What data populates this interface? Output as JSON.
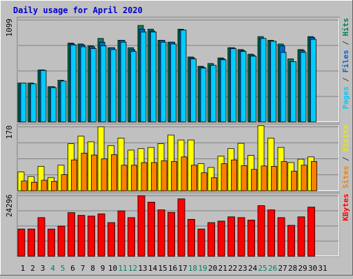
{
  "chart_data": [
    {
      "type": "bar",
      "title": "Daily usage for April 2020",
      "ymax_label": "1099",
      "axis_labels": [
        {
          "text": "Pages",
          "color": "#00ccff"
        },
        {
          "text": " / ",
          "color": "#404040"
        },
        {
          "text": "Files",
          "color": "#0066cc"
        },
        {
          "text": " / ",
          "color": "#404040"
        },
        {
          "text": "Hits",
          "color": "#008060"
        }
      ],
      "ylim": [
        0,
        1099
      ],
      "grid": true,
      "series": [
        {
          "name": "Hits",
          "color": "#00805c",
          "values": [
            420,
            420,
            560,
            380,
            450,
            850,
            840,
            820,
            900,
            800,
            880,
            800,
            1040,
            1000,
            880,
            860,
            1000,
            700,
            600,
            630,
            690,
            800,
            780,
            730,
            920,
            880,
            840,
            680,
            780,
            920
          ]
        },
        {
          "name": "Files",
          "color": "#0066cc",
          "values": [
            400,
            400,
            560,
            380,
            430,
            840,
            830,
            810,
            860,
            800,
            880,
            780,
            1000,
            980,
            880,
            860,
            990,
            690,
            590,
            610,
            680,
            800,
            770,
            720,
            900,
            870,
            820,
            650,
            770,
            910
          ]
        },
        {
          "name": "Pages",
          "color": "#00ccff",
          "values": [
            420,
            410,
            555,
            370,
            440,
            830,
            810,
            790,
            820,
            780,
            860,
            760,
            970,
            970,
            860,
            840,
            990,
            680,
            580,
            610,
            670,
            790,
            760,
            710,
            900,
            870,
            750,
            650,
            750,
            890
          ]
        }
      ]
    },
    {
      "type": "bar",
      "ymax_label": "170",
      "axis_labels": [
        {
          "text": "Sites",
          "color": "#ff8000"
        },
        {
          "text": " / ",
          "color": "#404040"
        },
        {
          "text": "Visits",
          "color": "#e8e800"
        }
      ],
      "ylim": [
        0,
        170
      ],
      "grid": true,
      "series": [
        {
          "name": "Visits",
          "color": "#ffff00",
          "values": [
            50,
            38,
            65,
            35,
            68,
            125,
            145,
            130,
            170,
            120,
            140,
            108,
            112,
            115,
            125,
            148,
            135,
            135,
            72,
            62,
            92,
            112,
            126,
            94,
            173,
            140,
            115,
            75,
            84,
            90
          ]
        },
        {
          "name": "Sites",
          "color": "#ff8000",
          "values": [
            26,
            23,
            28,
            25,
            43,
            82,
            100,
            95,
            85,
            96,
            68,
            68,
            75,
            75,
            80,
            78,
            90,
            68,
            48,
            35,
            72,
            82,
            67,
            57,
            66,
            65,
            78,
            52,
            68,
            78
          ]
        }
      ]
    },
    {
      "type": "bar",
      "ymax_label": "24296",
      "axis_labels": [
        {
          "text": "KBytes",
          "color": "#ff0000"
        }
      ],
      "ylim": [
        0,
        24296
      ],
      "grid": true,
      "series": [
        {
          "name": "KBytes",
          "color": "#ff0000",
          "values": [
            10900,
            10900,
            15500,
            10900,
            12100,
            17500,
            16400,
            16100,
            17000,
            13500,
            18200,
            15500,
            24296,
            21700,
            18600,
            17600,
            23000,
            14800,
            10900,
            13500,
            14100,
            15800,
            15500,
            14500,
            20300,
            18600,
            15500,
            12400,
            15800,
            19700
          ]
        }
      ]
    }
  ],
  "x_axis": {
    "days": [
      "1",
      "2",
      "3",
      "4",
      "5",
      "6",
      "7",
      "8",
      "9",
      "10",
      "11",
      "12",
      "13",
      "14",
      "15",
      "16",
      "17",
      "18",
      "19",
      "20",
      "21",
      "22",
      "23",
      "24",
      "25",
      "26",
      "27",
      "28",
      "29",
      "30",
      "31"
    ],
    "weekend_color": "#00805c",
    "weekday_color": "#000000",
    "weekend_days": [
      4,
      5,
      11,
      12,
      18,
      19,
      25,
      26
    ]
  }
}
